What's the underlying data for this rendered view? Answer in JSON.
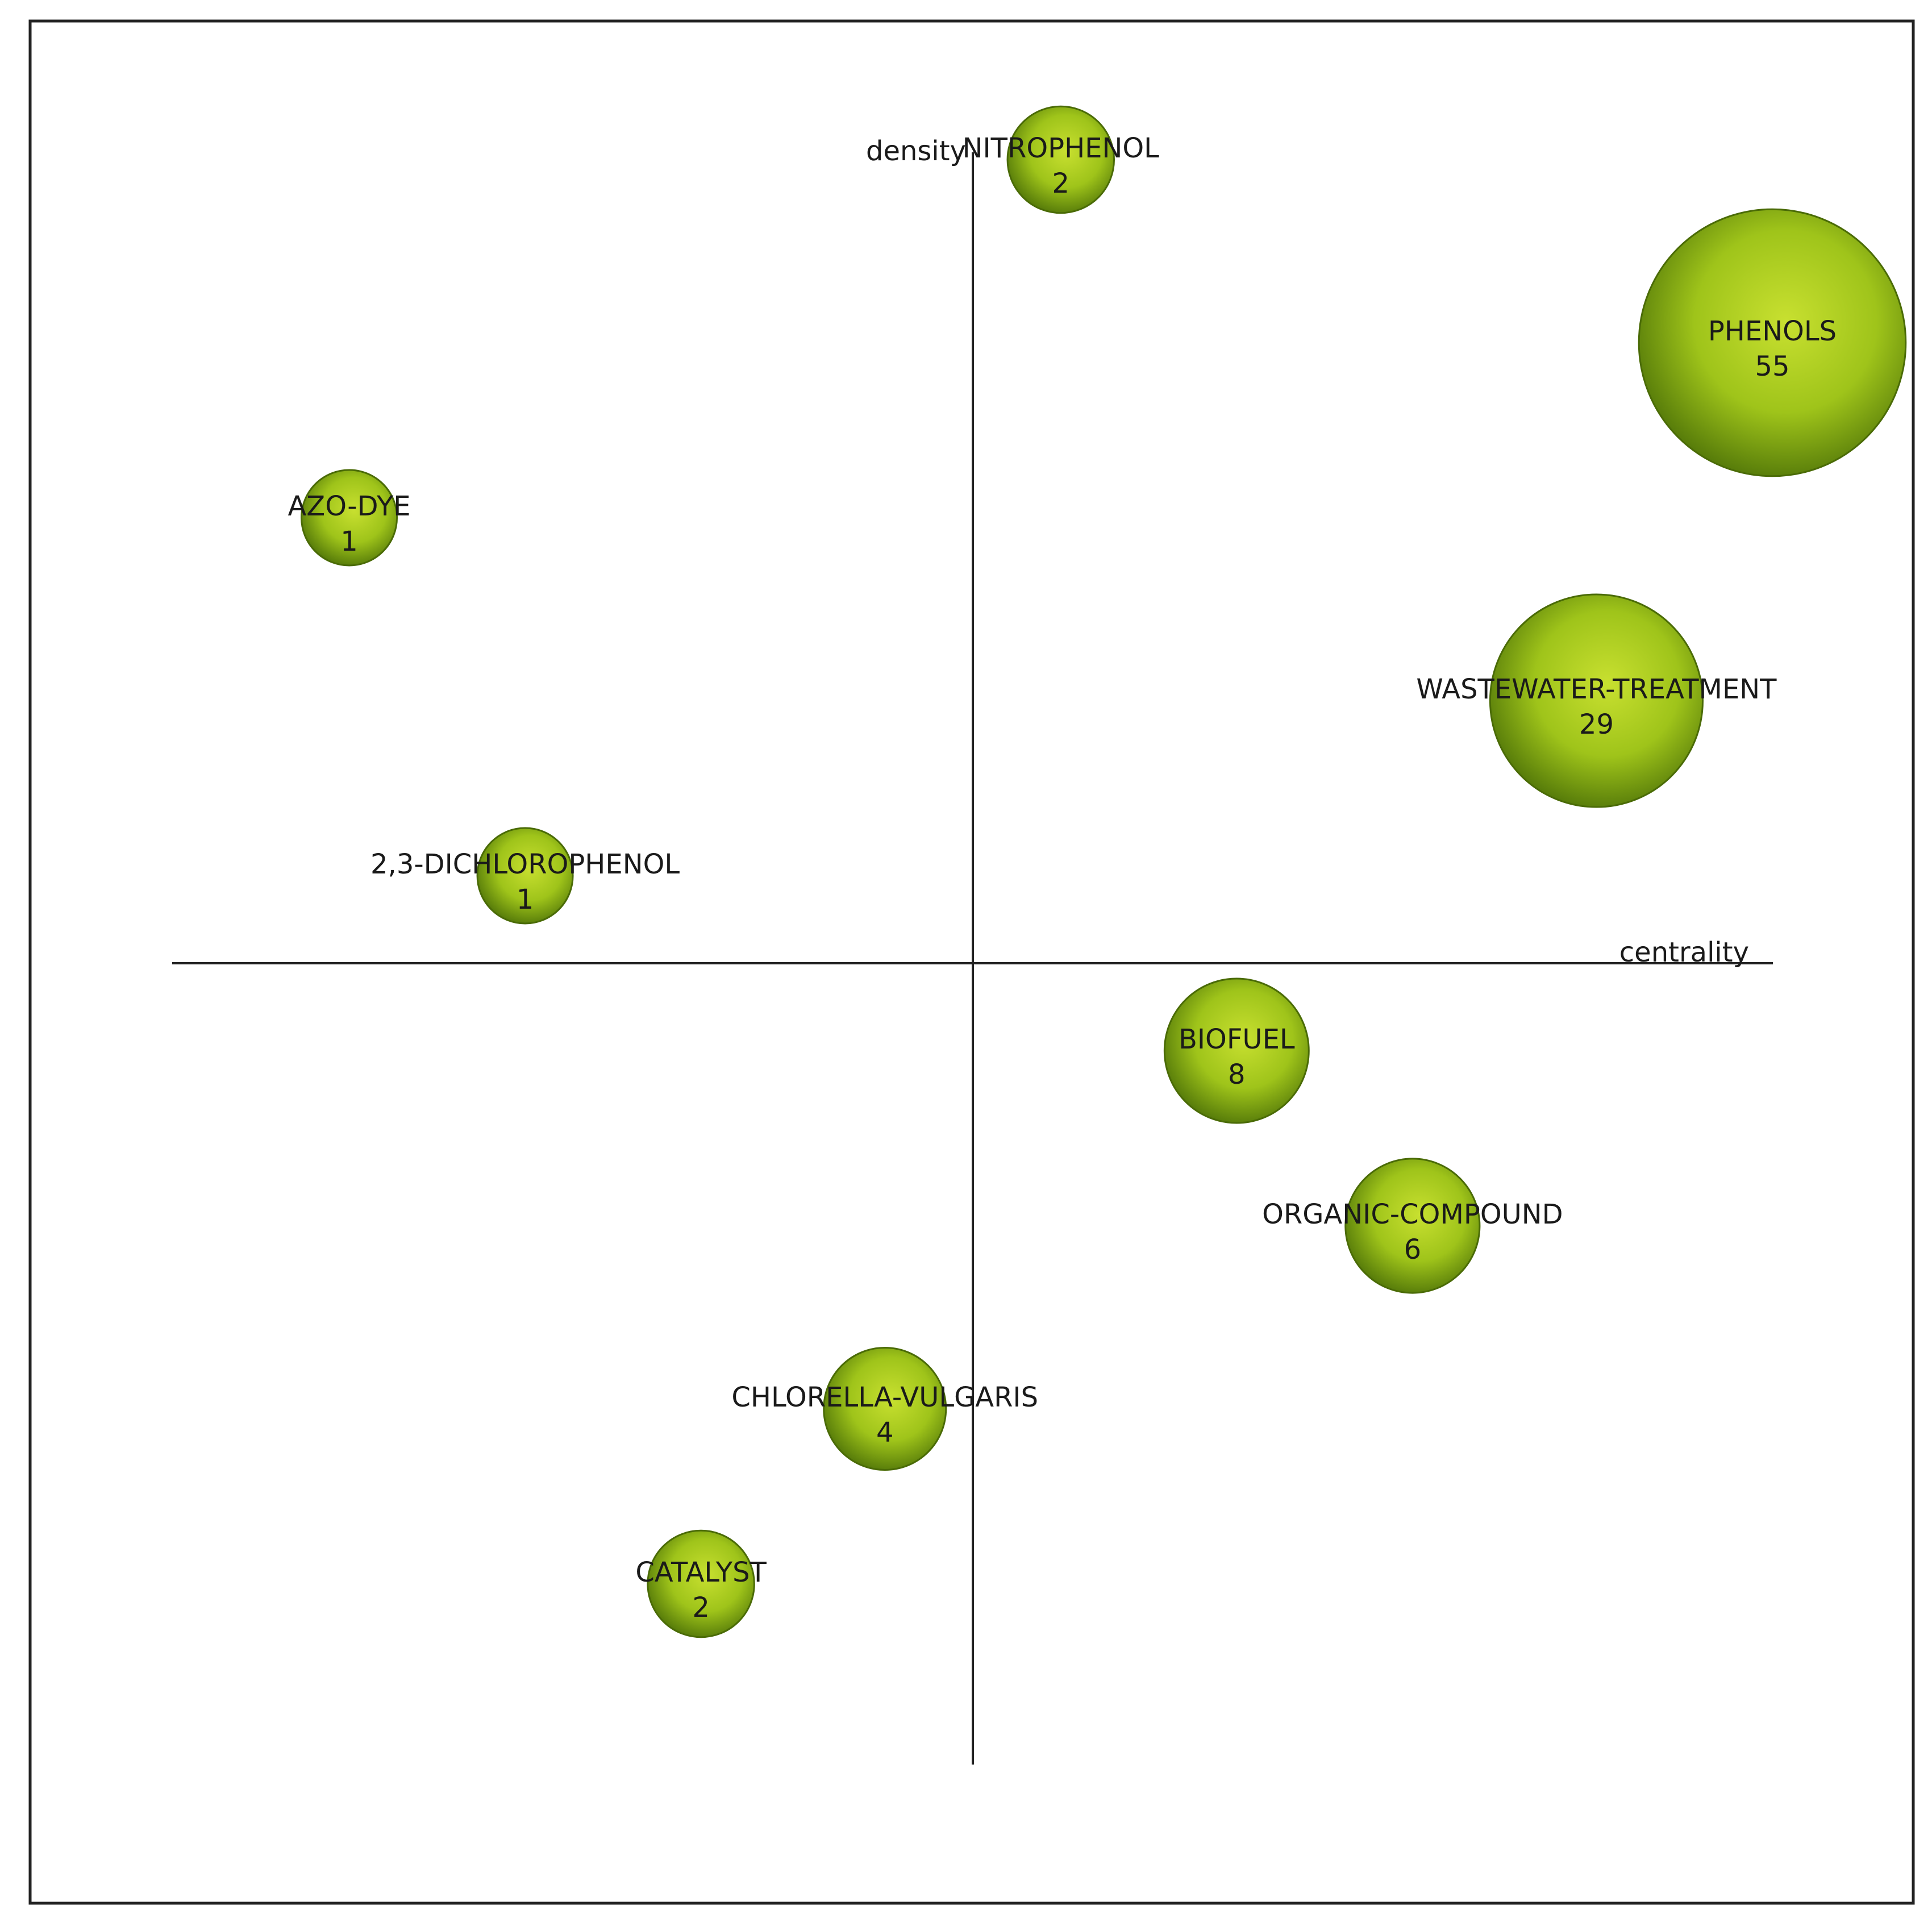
{
  "chart_data": {
    "type": "scatter",
    "subtype": "bubble",
    "xlabel": "centrality",
    "ylabel": "density",
    "xlim": [
      -1,
      1
    ],
    "ylim": [
      -1,
      1
    ],
    "grid": false,
    "legend": "none",
    "bubble_color": "#9fc41a",
    "bubble_edge": "#4a6b06",
    "points": [
      {
        "label": "NITROPHENOL",
        "value": "2",
        "x": 0.11,
        "y": 1.01
      },
      {
        "label": "PHENOLS",
        "value": "55",
        "x": 1.0,
        "y": 0.78
      },
      {
        "label": "AZO-DYE",
        "value": "1",
        "x": -0.78,
        "y": 0.56
      },
      {
        "label": "WASTEWATER-TREATMENT",
        "value": "29",
        "x": 0.78,
        "y": 0.33
      },
      {
        "label": "2,3-DICHLOROPHENOL",
        "value": "1",
        "x": -0.56,
        "y": 0.11
      },
      {
        "label": "BIOFUEL",
        "value": "8",
        "x": 0.33,
        "y": -0.11
      },
      {
        "label": "ORGANIC-COMPOUND",
        "value": "6",
        "x": 0.55,
        "y": -0.33
      },
      {
        "label": "CHLORELLA-VULGARIS",
        "value": "4",
        "x": -0.11,
        "y": -0.56
      },
      {
        "label": "CATALYST",
        "value": "2",
        "x": -0.34,
        "y": -0.78
      }
    ]
  }
}
